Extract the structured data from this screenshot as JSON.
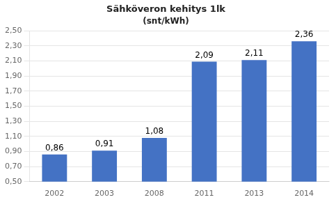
{
  "chart_data": {
    "type": "bar",
    "title": "Sähköveron kehitys 1lk",
    "subtitle": "(snt/kWh)",
    "categories": [
      "2002",
      "2003",
      "2008",
      "2011",
      "2013",
      "2014"
    ],
    "values": [
      0.86,
      0.91,
      1.08,
      2.09,
      2.11,
      2.36
    ],
    "value_labels": [
      "0,86",
      "0,91",
      "1,08",
      "2,09",
      "2,11",
      "2,36"
    ],
    "data_labels": true,
    "color": "#4472C4",
    "ylim": [
      0.5,
      2.5
    ],
    "yticks": [
      {
        "value": 0.5,
        "label": "0,50"
      },
      {
        "value": 0.7,
        "label": "0,70"
      },
      {
        "value": 0.9,
        "label": "0,90"
      },
      {
        "value": 1.1,
        "label": "1,10"
      },
      {
        "value": 1.3,
        "label": "1,30"
      },
      {
        "value": 1.5,
        "label": "1,50"
      },
      {
        "value": 1.7,
        "label": "1,70"
      },
      {
        "value": 1.9,
        "label": "1,90"
      },
      {
        "value": 2.1,
        "label": "2,10"
      },
      {
        "value": 2.3,
        "label": "2,30"
      },
      {
        "value": 2.5,
        "label": "2,50"
      }
    ],
    "grid": true
  }
}
